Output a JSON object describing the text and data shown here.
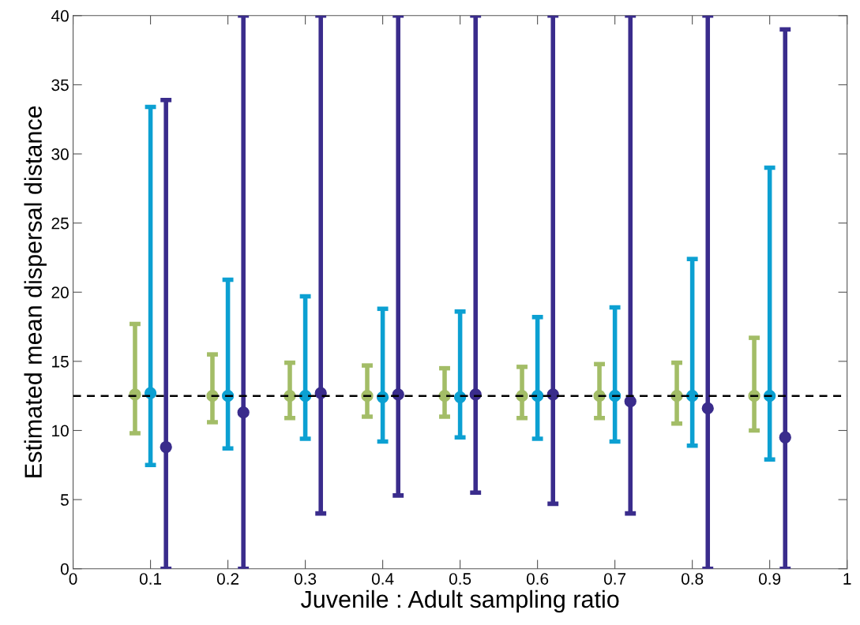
{
  "chart_data": {
    "type": "scatter",
    "xlabel": "Juvenile : Adult sampling ratio",
    "ylabel": "Estimated mean dispersal distance",
    "xlim": [
      0,
      1
    ],
    "xticks": [
      0,
      0.1,
      0.2,
      0.3,
      0.4,
      0.5,
      0.6,
      0.7,
      0.8,
      0.9,
      1
    ],
    "ylim": [
      0,
      40
    ],
    "yticks": [
      0,
      5,
      10,
      15,
      20,
      25,
      30,
      35,
      40
    ],
    "grid": false,
    "marker": "circle",
    "ref_lines": [
      {
        "axis": "y",
        "value": 12.5,
        "color": "#000000",
        "line_style": "dashed"
      }
    ],
    "series": [
      {
        "color": "#a3bd67",
        "x": [
          0.08,
          0.18,
          0.28,
          0.38,
          0.48,
          0.58,
          0.68,
          0.78,
          0.88
        ],
        "values": [
          12.6,
          12.5,
          12.5,
          12.5,
          12.5,
          12.5,
          12.5,
          12.5,
          12.5
        ],
        "errors": [
          [
            9.8,
            17.7
          ],
          [
            10.6,
            15.5
          ],
          [
            10.9,
            14.9
          ],
          [
            11.0,
            14.7
          ],
          [
            11.0,
            14.5
          ],
          [
            10.9,
            14.6
          ],
          [
            10.9,
            14.8
          ],
          [
            10.5,
            14.9
          ],
          [
            10.0,
            16.7
          ]
        ]
      },
      {
        "color": "#0ca0d2",
        "x": [
          0.1,
          0.2,
          0.3,
          0.4,
          0.5,
          0.6,
          0.7,
          0.8,
          0.9
        ],
        "values": [
          12.7,
          12.5,
          12.5,
          12.4,
          12.4,
          12.5,
          12.5,
          12.5,
          12.5
        ],
        "errors": [
          [
            7.5,
            33.4
          ],
          [
            8.7,
            20.9
          ],
          [
            9.4,
            19.7
          ],
          [
            9.2,
            18.8
          ],
          [
            9.5,
            18.6
          ],
          [
            9.4,
            18.2
          ],
          [
            9.2,
            18.9
          ],
          [
            8.9,
            22.4
          ],
          [
            7.9,
            29.0
          ]
        ]
      },
      {
        "color": "#3a2c8c",
        "x": [
          0.12,
          0.22,
          0.32,
          0.42,
          0.52,
          0.62,
          0.72,
          0.82,
          0.92
        ],
        "values": [
          8.8,
          11.3,
          12.7,
          12.6,
          12.6,
          12.6,
          12.1,
          11.6,
          9.5
        ],
        "errors": [
          [
            0,
            33.9
          ],
          [
            0,
            40
          ],
          [
            4.0,
            40
          ],
          [
            5.3,
            40
          ],
          [
            5.5,
            40
          ],
          [
            4.7,
            40
          ],
          [
            4.0,
            40
          ],
          [
            0,
            40
          ],
          [
            0,
            39.0
          ]
        ]
      }
    ]
  }
}
